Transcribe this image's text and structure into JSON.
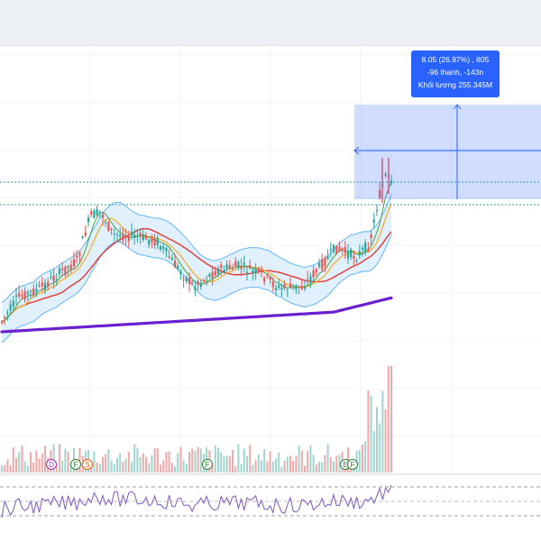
{
  "tooltip": {
    "line1": "8.05 (26.97%) , 805",
    "line2": "-96 thanh, -143n",
    "line3": "Khối lượng 255.345M"
  },
  "markers": [
    {
      "id": "m1",
      "label": "D",
      "color": "#9c27b0"
    },
    {
      "id": "m2",
      "label": "F",
      "color": "#2e7d32"
    },
    {
      "id": "m3",
      "label": "S",
      "color": "#e65100"
    },
    {
      "id": "m4",
      "label": "F",
      "color": "#2e7d32"
    },
    {
      "id": "m5",
      "label": "E",
      "color": "#2e7d32"
    },
    {
      "id": "m6",
      "label": "F",
      "color": "#2e7d32"
    }
  ],
  "colors": {
    "up": "#26a69a",
    "down": "#ef5350",
    "ma_long": "#6a1fd0",
    "ma_mid": "#e53935",
    "ma_fast": "#f9a825",
    "ma_fastest": "#43a047",
    "band": "#bbdefb",
    "band_line": "#64b5f6",
    "rsi": "#7e57c2",
    "measure": "#2962ff"
  }
}
